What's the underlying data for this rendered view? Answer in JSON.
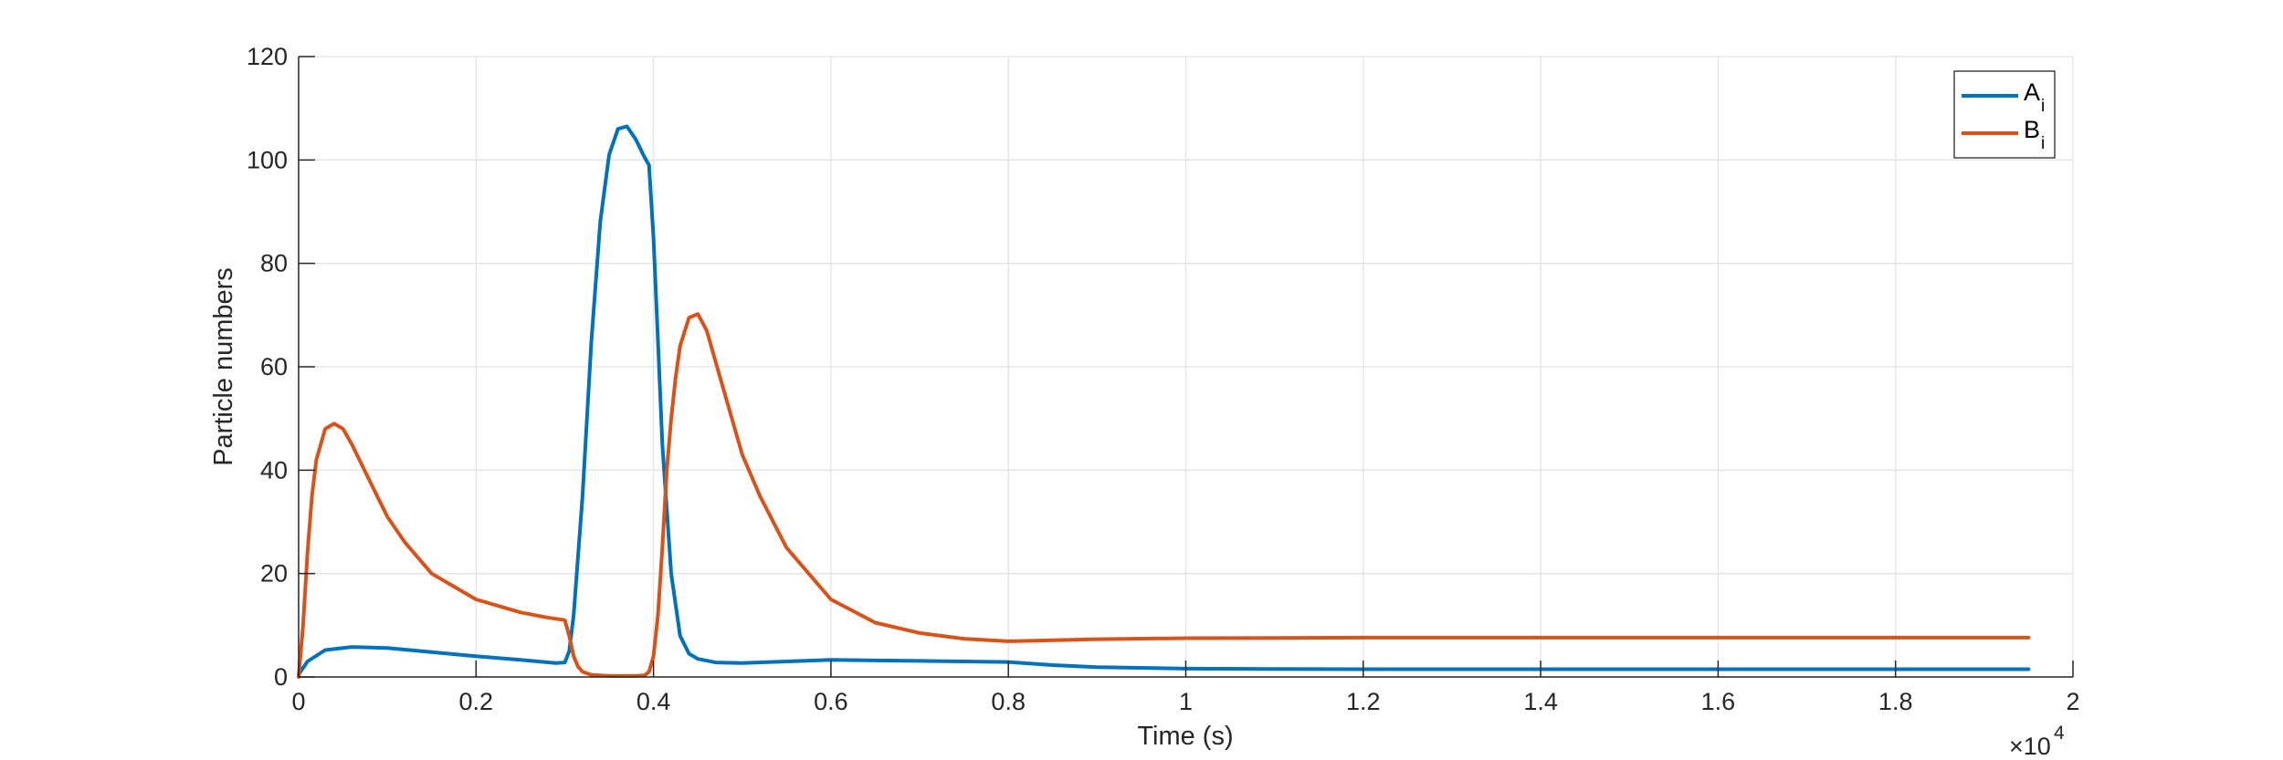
{
  "chart_data": {
    "type": "line",
    "xlabel": "Time (s)",
    "ylabel": "Particle numbers",
    "x_exponent_label": "×10",
    "x_exponent_power": "4",
    "xlim": [
      0,
      2
    ],
    "ylim": [
      0,
      120
    ],
    "x_unit_multiplier": 10000,
    "grid": true,
    "legend_position": "top-right",
    "x_ticks": [
      0,
      0.2,
      0.4,
      0.6,
      0.8,
      1,
      1.2,
      1.4,
      1.6,
      1.8,
      2
    ],
    "x_tick_labels": [
      "0",
      "0.2",
      "0.4",
      "0.6",
      "0.8",
      "1",
      "1.2",
      "1.4",
      "1.6",
      "1.8",
      "2"
    ],
    "y_ticks": [
      0,
      20,
      40,
      60,
      80,
      100,
      120
    ],
    "y_tick_labels": [
      "0",
      "20",
      "40",
      "60",
      "80",
      "100",
      "120"
    ],
    "series": [
      {
        "name": "A",
        "name_subscript": "i",
        "color": "#0072BD",
        "x": [
          0,
          0.01,
          0.03,
          0.06,
          0.1,
          0.15,
          0.2,
          0.25,
          0.29,
          0.3,
          0.305,
          0.31,
          0.32,
          0.33,
          0.34,
          0.35,
          0.36,
          0.37,
          0.38,
          0.39,
          0.395,
          0.4,
          0.405,
          0.41,
          0.42,
          0.43,
          0.44,
          0.45,
          0.47,
          0.5,
          0.55,
          0.6,
          0.65,
          0.7,
          0.75,
          0.8,
          0.85,
          0.9,
          1.0,
          1.2,
          1.4,
          1.6,
          1.8,
          1.95
        ],
        "y": [
          0.5,
          3,
          5.2,
          5.8,
          5.6,
          4.8,
          4,
          3.3,
          2.7,
          2.8,
          5,
          12,
          35,
          65,
          88,
          101,
          106,
          106.5,
          104,
          100.5,
          99,
          85,
          65,
          45,
          20,
          8,
          4.5,
          3.5,
          2.8,
          2.7,
          3,
          3.3,
          3.2,
          3.1,
          3,
          2.9,
          2.3,
          1.9,
          1.6,
          1.5,
          1.5,
          1.5,
          1.5,
          1.5
        ]
      },
      {
        "name": "B",
        "name_subscript": "i",
        "color": "#D95319",
        "x": [
          0,
          0.005,
          0.01,
          0.015,
          0.02,
          0.03,
          0.04,
          0.05,
          0.06,
          0.08,
          0.1,
          0.12,
          0.15,
          0.2,
          0.25,
          0.28,
          0.3,
          0.305,
          0.31,
          0.315,
          0.32,
          0.33,
          0.35,
          0.38,
          0.39,
          0.395,
          0.4,
          0.405,
          0.41,
          0.415,
          0.42,
          0.425,
          0.43,
          0.44,
          0.45,
          0.46,
          0.47,
          0.48,
          0.5,
          0.52,
          0.55,
          0.6,
          0.65,
          0.7,
          0.75,
          0.8,
          0.85,
          0.9,
          1.0,
          1.2,
          1.4,
          1.6,
          1.8,
          1.95
        ],
        "y": [
          0,
          10,
          24,
          35,
          42,
          48,
          49,
          48,
          45,
          38,
          31,
          26,
          20,
          15,
          12.5,
          11.5,
          11,
          8,
          4,
          2,
          1,
          0.4,
          0.2,
          0.2,
          0.3,
          1,
          4,
          12,
          25,
          40,
          50,
          58,
          64,
          69.5,
          70.2,
          67,
          61,
          55,
          43,
          35,
          25,
          15,
          10.5,
          8.5,
          7.4,
          6.9,
          7.1,
          7.3,
          7.5,
          7.6,
          7.6,
          7.6,
          7.6,
          7.6
        ]
      }
    ]
  }
}
